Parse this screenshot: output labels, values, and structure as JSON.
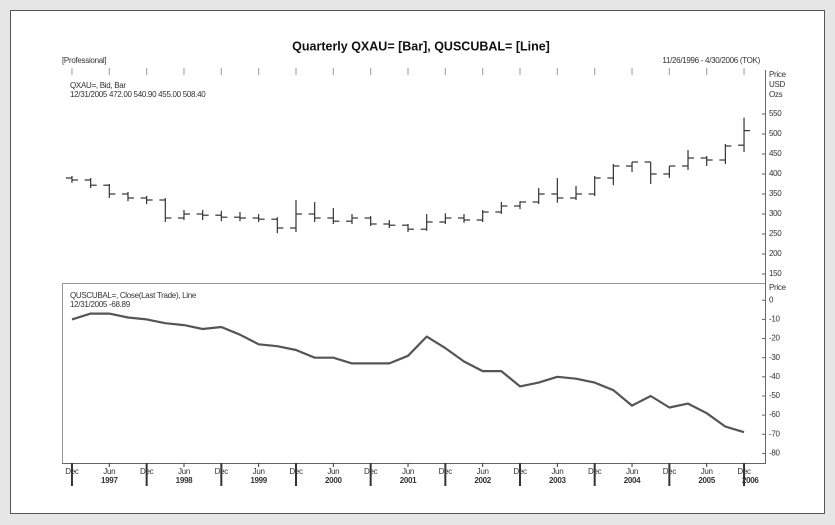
{
  "header": {
    "title": "Quarterly QXAU= [Bar], QUSCUBAL= [Line]",
    "left_note": "[Professional]",
    "right_note": "11/26/1996 - 4/30/2006 (TOK)"
  },
  "chart_data": [
    {
      "type": "ohlc",
      "ylabel": [
        "Price",
        "USD",
        "Ozs"
      ],
      "annotation": "12/31/2005 472.00 540.90 455.00 508.40",
      "xlim": [
        "1996-09",
        "2006-03"
      ],
      "ylim": [
        140,
        660
      ],
      "yticks": [
        150,
        200,
        250,
        300,
        350,
        400,
        450,
        500,
        550
      ],
      "x": [
        "1996-12",
        "1997-03",
        "1997-06",
        "1997-09",
        "1997-12",
        "1998-03",
        "1998-06",
        "1998-09",
        "1998-12",
        "1999-03",
        "1999-06",
        "1999-09",
        "1999-12",
        "2000-03",
        "2000-06",
        "2000-09",
        "2000-12",
        "2001-03",
        "2001-06",
        "2001-09",
        "2001-12",
        "2002-03",
        "2002-06",
        "2002-09",
        "2002-12",
        "2003-03",
        "2003-06",
        "2003-09",
        "2003-12",
        "2004-03",
        "2004-06",
        "2004-09",
        "2004-12",
        "2005-03",
        "2005-06",
        "2005-09",
        "2005-12"
      ],
      "series": [
        {
          "name": "QXAU=, Bid, Bar",
          "color": "#333333",
          "open": [
            390,
            385,
            372,
            350,
            340,
            335,
            290,
            300,
            297,
            292,
            290,
            287,
            265,
            300,
            290,
            282,
            290,
            275,
            272,
            262,
            280,
            290,
            285,
            305,
            320,
            330,
            350,
            340,
            350,
            390,
            420,
            430,
            400,
            420,
            440,
            435,
            472
          ],
          "high": [
            395,
            390,
            375,
            355,
            345,
            340,
            310,
            310,
            308,
            305,
            300,
            292,
            335,
            330,
            315,
            300,
            295,
            285,
            275,
            300,
            302,
            300,
            310,
            330,
            332,
            365,
            390,
            370,
            395,
            425,
            430,
            430,
            420,
            460,
            445,
            475,
            540.9
          ],
          "low": [
            378,
            365,
            340,
            332,
            325,
            280,
            285,
            285,
            282,
            282,
            280,
            252,
            255,
            280,
            275,
            275,
            270,
            265,
            255,
            258,
            275,
            278,
            280,
            300,
            312,
            325,
            328,
            335,
            345,
            372,
            405,
            375,
            390,
            410,
            420,
            425,
            455
          ],
          "close": [
            385,
            372,
            350,
            340,
            335,
            290,
            300,
            297,
            292,
            290,
            287,
            265,
            300,
            290,
            282,
            290,
            275,
            272,
            262,
            280,
            290,
            285,
            305,
            320,
            330,
            350,
            340,
            350,
            390,
            420,
            430,
            400,
            420,
            440,
            435,
            470,
            508.4
          ]
        }
      ]
    },
    {
      "type": "line",
      "ylabel": [
        "Price"
      ],
      "annotation": "12/31/2005 -68.89",
      "xlim": [
        "1996-09",
        "2006-03"
      ],
      "ylim": [
        -85,
        9
      ],
      "yticks": [
        0,
        -10,
        -20,
        -30,
        -40,
        -50,
        -60,
        -70,
        -80
      ],
      "xticks": [
        {
          "value": "1996-12",
          "label": "Dec"
        },
        {
          "value": "1997-06",
          "label": "Jun"
        },
        {
          "value": "1997-12",
          "label": "Dec"
        },
        {
          "value": "1998-06",
          "label": "Jun"
        },
        {
          "value": "1998-12",
          "label": "Dec"
        },
        {
          "value": "1999-06",
          "label": "Jun"
        },
        {
          "value": "1999-12",
          "label": "Dec"
        },
        {
          "value": "2000-06",
          "label": "Jun"
        },
        {
          "value": "2000-12",
          "label": "Dec"
        },
        {
          "value": "2001-06",
          "label": "Jun"
        },
        {
          "value": "2001-12",
          "label": "Dec"
        },
        {
          "value": "2002-06",
          "label": "Jun"
        },
        {
          "value": "2002-12",
          "label": "Dec"
        },
        {
          "value": "2003-06",
          "label": "Jun"
        },
        {
          "value": "2003-12",
          "label": "Dec"
        },
        {
          "value": "2004-06",
          "label": "Jun"
        },
        {
          "value": "2004-12",
          "label": "Dec"
        },
        {
          "value": "2005-06",
          "label": "Jun"
        },
        {
          "value": "2005-12",
          "label": "Dec"
        }
      ],
      "year_ticks": [
        {
          "value": "1997-06",
          "label": "1997"
        },
        {
          "value": "1998-06",
          "label": "1998"
        },
        {
          "value": "1999-06",
          "label": "1999"
        },
        {
          "value": "2000-06",
          "label": "2000"
        },
        {
          "value": "2001-06",
          "label": "2001"
        },
        {
          "value": "2002-06",
          "label": "2002"
        },
        {
          "value": "2003-06",
          "label": "2003"
        },
        {
          "value": "2004-06",
          "label": "2004"
        },
        {
          "value": "2005-06",
          "label": "2005"
        },
        {
          "value": "2006-01",
          "label": "2006"
        }
      ],
      "x": [
        "1996-12",
        "1997-03",
        "1997-06",
        "1997-09",
        "1997-12",
        "1998-03",
        "1998-06",
        "1998-09",
        "1998-12",
        "1999-03",
        "1999-06",
        "1999-09",
        "1999-12",
        "2000-03",
        "2000-06",
        "2000-09",
        "2000-12",
        "2001-03",
        "2001-06",
        "2001-09",
        "2001-12",
        "2002-03",
        "2002-06",
        "2002-09",
        "2002-12",
        "2003-03",
        "2003-06",
        "2003-09",
        "2003-12",
        "2004-03",
        "2004-06",
        "2004-09",
        "2004-12",
        "2005-03",
        "2005-06",
        "2005-09",
        "2005-12"
      ],
      "series": [
        {
          "name": "QUSCUBAL=, Close(Last Trade), Line",
          "color": "#555555",
          "values": [
            -10,
            -7,
            -7,
            -9,
            -10,
            -12,
            -13,
            -15,
            -14,
            -18,
            -23,
            -24,
            -26,
            -30,
            -30,
            -33,
            -33,
            -33,
            -29,
            -19,
            -25,
            -32,
            -37,
            -37,
            -45,
            -43,
            -40,
            -41,
            -43,
            -47,
            -55,
            -50,
            -56,
            -54,
            -59,
            -66,
            -68.89
          ]
        }
      ]
    }
  ]
}
